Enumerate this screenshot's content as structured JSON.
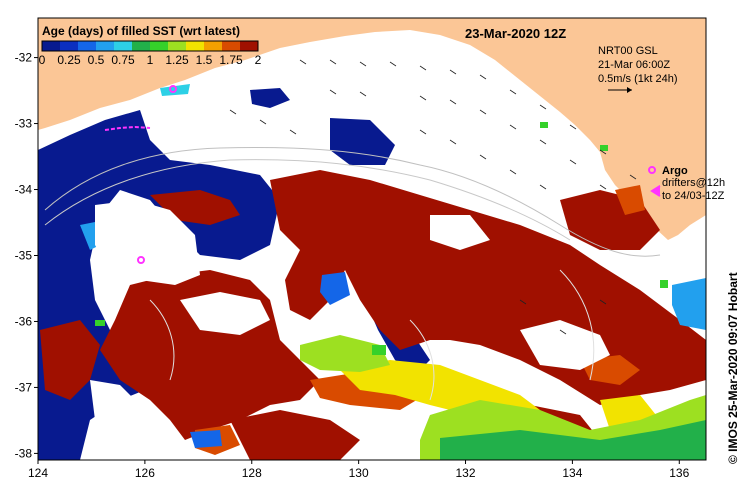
{
  "map": {
    "date_title": "23-Mar-2020 12Z",
    "colorbar": {
      "title": "Age (days) of filled SST (wrt latest)",
      "ticks": [
        "0",
        "0.25",
        "0.5",
        "0.75",
        "1",
        "1.25",
        "1.5",
        "1.75",
        "2"
      ],
      "colors": [
        "#081a8f",
        "#0b2fc0",
        "#1466e8",
        "#22a0ee",
        "#2dd0e6",
        "#22b04a",
        "#35d12a",
        "#9de021",
        "#f2e300",
        "#f3a000",
        "#d94b00",
        "#a01000"
      ]
    },
    "current_info": {
      "line1": "NRT00 GSL",
      "line2": "21-Mar 06:00Z",
      "line3": "0.5m/s (1kt 24h)"
    },
    "legend": {
      "argo_label": "Argo",
      "drifters_line1": "drifters@12h",
      "drifters_line2": "to 24/03-12Z"
    },
    "x_ticks": [
      "124",
      "126",
      "128",
      "130",
      "132",
      "134",
      "136"
    ],
    "y_ticks": [
      "-32",
      "-33",
      "-34",
      "-35",
      "-36",
      "-37",
      "-38"
    ],
    "x_range": [
      124,
      136.5
    ],
    "y_range": [
      -38.1,
      -31.4
    ],
    "credit": "© IMOS 25-Mar-2020 09:07 Hobart",
    "colors": {
      "land": "#fbc696",
      "no_data": "#ffffff",
      "argo": "#ff33ff"
    }
  }
}
